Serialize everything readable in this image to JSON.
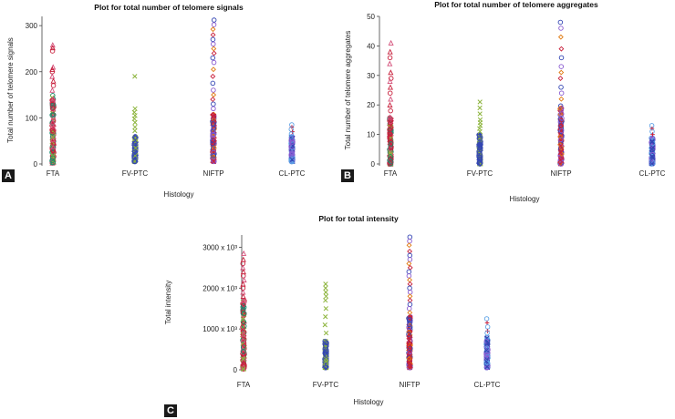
{
  "chart_data": [
    {
      "id": "A",
      "type": "scatter",
      "title": "Plot for total number of telomere signals",
      "xlabel": "Histology",
      "ylabel": "Total number of telomere signals",
      "categories": [
        "FTA",
        "FV-PTC",
        "NIFTP",
        "CL-PTC"
      ],
      "ylim": [
        0,
        320
      ],
      "yticks": [
        "0",
        "100",
        "200",
        "300"
      ],
      "ytick_values": [
        0,
        100,
        200,
        300
      ],
      "groups": [
        {
          "category": "FTA",
          "min": 2,
          "max": 258,
          "dense_max": 150,
          "outliers": [
            258,
            252,
            245,
            210,
            205,
            200,
            190,
            180,
            170,
            160
          ]
        },
        {
          "category": "FV-PTC",
          "min": 5,
          "max": 190,
          "dense_max": 60,
          "outliers": [
            190,
            120,
            112,
            105,
            98,
            90,
            80,
            72
          ]
        },
        {
          "category": "NIFTP",
          "min": 5,
          "max": 312,
          "dense_max": 110,
          "outliers": [
            312,
            302,
            292,
            280,
            270,
            260,
            250,
            240,
            230,
            220,
            205,
            190,
            175,
            160,
            150,
            140,
            130,
            120
          ]
        },
        {
          "category": "CL-PTC",
          "min": 5,
          "max": 85,
          "dense_max": 60,
          "outliers": [
            85,
            80,
            75,
            70,
            65
          ]
        }
      ]
    },
    {
      "id": "B",
      "type": "scatter",
      "title": "Plot for total number of telomere aggregates",
      "xlabel": "Histology",
      "ylabel": "Total number of telomere aggregates",
      "categories": [
        "FTA",
        "FV-PTC",
        "NIFTP",
        "CL-PTC"
      ],
      "ylim": [
        0,
        50
      ],
      "yticks": [
        "0",
        "10",
        "20",
        "30",
        "40",
        "50"
      ],
      "ytick_values": [
        0,
        10,
        20,
        30,
        40,
        50
      ],
      "groups": [
        {
          "category": "FTA",
          "min": 0,
          "max": 41,
          "dense_max": 16,
          "outliers": [
            41,
            38,
            36,
            34,
            31,
            29,
            28,
            26,
            24,
            22,
            20,
            18
          ]
        },
        {
          "category": "FV-PTC",
          "min": 0,
          "max": 21,
          "dense_max": 10,
          "outliers": [
            21,
            19,
            17,
            15,
            14,
            13,
            12,
            11
          ]
        },
        {
          "category": "NIFTP",
          "min": 0,
          "max": 48,
          "dense_max": 20,
          "outliers": [
            48,
            46,
            43,
            39,
            36,
            33,
            31,
            29,
            26,
            24,
            22
          ]
        },
        {
          "category": "CL-PTC",
          "min": 0,
          "max": 13,
          "dense_max": 9,
          "outliers": [
            13,
            12,
            11,
            10
          ]
        }
      ]
    },
    {
      "id": "C",
      "type": "scatter",
      "title": "Plot for total intensity",
      "xlabel": "Histology",
      "ylabel": "Total intensity",
      "categories": [
        "FTA",
        "FV-PTC",
        "NIFTP",
        "CL-PTC"
      ],
      "ylim": [
        0,
        3300
      ],
      "yticks": [
        "0",
        "1000 x 10³",
        "2000 x 10³",
        "3000 x 10³"
      ],
      "ytick_values": [
        0,
        1000,
        2000,
        3000
      ],
      "groups": [
        {
          "category": "FTA",
          "min": 20,
          "max": 2850,
          "dense_max": 1700,
          "outliers": [
            2850,
            2700,
            2600,
            2500,
            2400,
            2300,
            2200,
            2100,
            2000,
            1900,
            1800
          ]
        },
        {
          "category": "FV-PTC",
          "min": 50,
          "max": 2100,
          "dense_max": 700,
          "outliers": [
            2100,
            2000,
            1900,
            1800,
            1700,
            1500,
            1300,
            1100,
            900
          ]
        },
        {
          "category": "NIFTP",
          "min": 50,
          "max": 3250,
          "dense_max": 1300,
          "outliers": [
            3250,
            3150,
            3050,
            2900,
            2800,
            2700,
            2600,
            2500,
            2400,
            2300,
            2200,
            2100,
            2000,
            1900,
            1800,
            1700,
            1600,
            1500,
            1400
          ]
        },
        {
          "category": "CL-PTC",
          "min": 50,
          "max": 1250,
          "dense_max": 800,
          "outliers": [
            1250,
            1150,
            1050,
            950,
            900
          ]
        }
      ]
    }
  ],
  "panel_labels": {
    "a": "A",
    "b": "B",
    "c": "C"
  },
  "colors": {
    "teal": "#1a8a6e",
    "green": "#8cb43c",
    "red": "#c8203c",
    "orange": "#e07a10",
    "blue": "#3446b4",
    "purple": "#8a5ad0",
    "pink": "#d4507a",
    "lightblue": "#5aa0e6",
    "axis": "#444444"
  }
}
